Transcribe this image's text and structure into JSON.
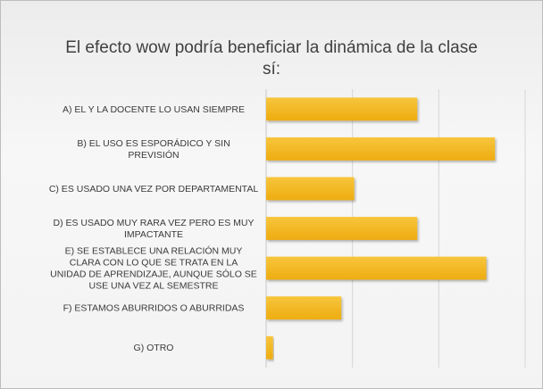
{
  "chart_data": {
    "type": "bar",
    "orientation": "horizontal",
    "title_lines": [
      "El efecto wow podría beneficiar la dinámica de la clase",
      "sí:"
    ],
    "categories": [
      "A)   EL Y LA DOCENTE LO USAN SIEMPRE",
      "B) EL USO ES ESPORÁDICO Y SIN PREVISIÓN",
      "C) ES USADO UNA VEZ POR DEPARTAMENTAL",
      "D) ES USADO MUY RARA VEZ PERO ES MUY IMPACTANTE",
      "E) SE ESTABLECE UNA RELACIÓN MUY CLARA CON LO QUE SE TRATA EN LA UNIDAD DE APRENDIZAJE, AUNQUE SÓLO SE USE UNA VEZ AL SEMESTRE",
      "F) ESTAMOS ABURRIDOS O ABURRIDAS",
      "G) OTRO"
    ],
    "values": [
      17.5,
      26.5,
      10.2,
      17.5,
      25.5,
      8.7,
      0.8
    ],
    "xlim": [
      0,
      30
    ],
    "grid": true,
    "bar_color": "#f4b41a"
  }
}
